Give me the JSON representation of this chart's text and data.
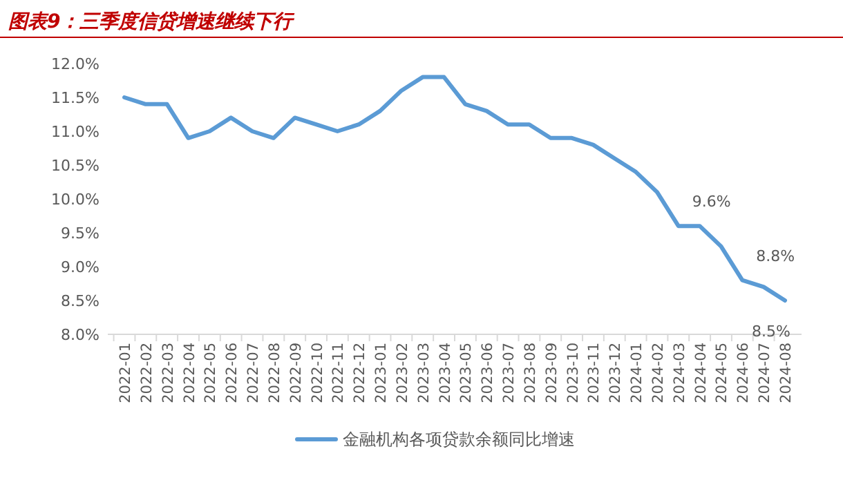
{
  "chart_data": {
    "type": "line",
    "title": "图表9：三季度信贷增速继续下行",
    "categories": [
      "2022-01",
      "2022-02",
      "2022-03",
      "2022-04",
      "2022-05",
      "2022-06",
      "2022-07",
      "2022-08",
      "2022-09",
      "2022-10",
      "2022-11",
      "2022-12",
      "2023-01",
      "2023-02",
      "2023-03",
      "2023-04",
      "2023-05",
      "2023-06",
      "2023-07",
      "2023-08",
      "2023-09",
      "2023-10",
      "2023-11",
      "2023-12",
      "2024-01",
      "2024-02",
      "2024-03",
      "2024-04",
      "2024-05",
      "2024-06",
      "2024-07",
      "2024-08"
    ],
    "series": [
      {
        "name": "金融机构各项贷款余额同比增速",
        "color": "#5b9bd5",
        "values": [
          11.5,
          11.4,
          11.4,
          10.9,
          11.0,
          11.2,
          11.0,
          10.9,
          11.2,
          11.1,
          11.0,
          11.1,
          11.3,
          11.6,
          11.8,
          11.8,
          11.4,
          11.3,
          11.1,
          11.1,
          10.9,
          10.9,
          10.8,
          10.6,
          10.4,
          10.1,
          9.6,
          9.6,
          9.3,
          8.8,
          8.7,
          8.5
        ],
        "value_labels": [
          null,
          null,
          null,
          null,
          null,
          null,
          null,
          null,
          null,
          null,
          null,
          null,
          null,
          null,
          null,
          null,
          null,
          null,
          null,
          null,
          null,
          null,
          null,
          null,
          null,
          null,
          "9.6%",
          null,
          null,
          "8.8%",
          null,
          "8.5%"
        ]
      }
    ],
    "ylim": [
      8.0,
      12.0
    ],
    "yticks": [
      {
        "value": 8.0,
        "label": "8.0%"
      },
      {
        "value": 8.5,
        "label": "8.5%"
      },
      {
        "value": 9.0,
        "label": "9.0%"
      },
      {
        "value": 9.5,
        "label": "9.5%"
      },
      {
        "value": 10.0,
        "label": "10.0%"
      },
      {
        "value": 10.5,
        "label": "10.5%"
      },
      {
        "value": 11.0,
        "label": "11.0%"
      },
      {
        "value": 11.5,
        "label": "11.5%"
      },
      {
        "value": 12.0,
        "label": "12.0%"
      }
    ],
    "grid": false,
    "legend": "bottom",
    "marker": "none",
    "line_style": "solid"
  }
}
